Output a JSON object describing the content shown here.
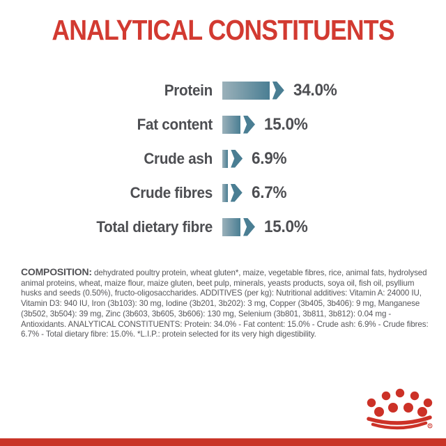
{
  "title": "ANALYTICAL CONSTITUENTS",
  "colors": {
    "brand-red": "#d23a31",
    "crown-red": "#cc3127",
    "bottom-bar-red": "#c93528",
    "bar-teal-light": "#9bb1ba",
    "bar-teal-dark": "#4a7e93"
  },
  "chart_data": {
    "type": "bar",
    "orientation": "horizontal",
    "unit": "%",
    "title": "ANALYTICAL CONSTITUENTS",
    "categories": [
      "Protein",
      "Fat content",
      "Crude ash",
      "Crude fibres",
      "Total dietary fibre"
    ],
    "values": [
      34.0,
      15.0,
      6.9,
      6.7,
      15.0
    ],
    "value_labels": [
      "34.0%",
      "15.0%",
      "6.9%",
      "6.7%",
      "15.0%"
    ],
    "legend": "none",
    "grid": "off"
  },
  "composition": {
    "label": "COMPOSITION:",
    "text": "dehydrated poultry protein, wheat gluten*, maize, vegetable fibres, rice, animal fats, hydrolysed animal proteins, wheat, maize flour, maize gluten, beet pulp, minerals, yeasts products, soya oil, fish oil, psyllium husks and seeds (0.50%), fructo-oligosaccharides. ADDITIVES (per kg): Nutritional additives: Vitamin A: 24000 IU, Vitamin D3: 940 IU, Iron (3b103): 30 mg, Iodine (3b201, 3b202): 3 mg, Copper (3b405, 3b406): 9 mg, Manganese (3b502, 3b504): 39 mg, Zinc (3b603, 3b605, 3b606): 130 mg, Selenium (3b801, 3b811, 3b812): 0.04 mg - Antioxidants. ANALYTICAL CONSTITUENTS: Protein: 34.0% - Fat content: 15.0% - Crude ash: 6.9% - Crude fibres: 6.7% - Total dietary fibre: 15.0%. *L.I.P.: protein selected for its very high digestibility."
  },
  "logo": {
    "name": "royal-canin-crown",
    "registered_mark": "R"
  }
}
